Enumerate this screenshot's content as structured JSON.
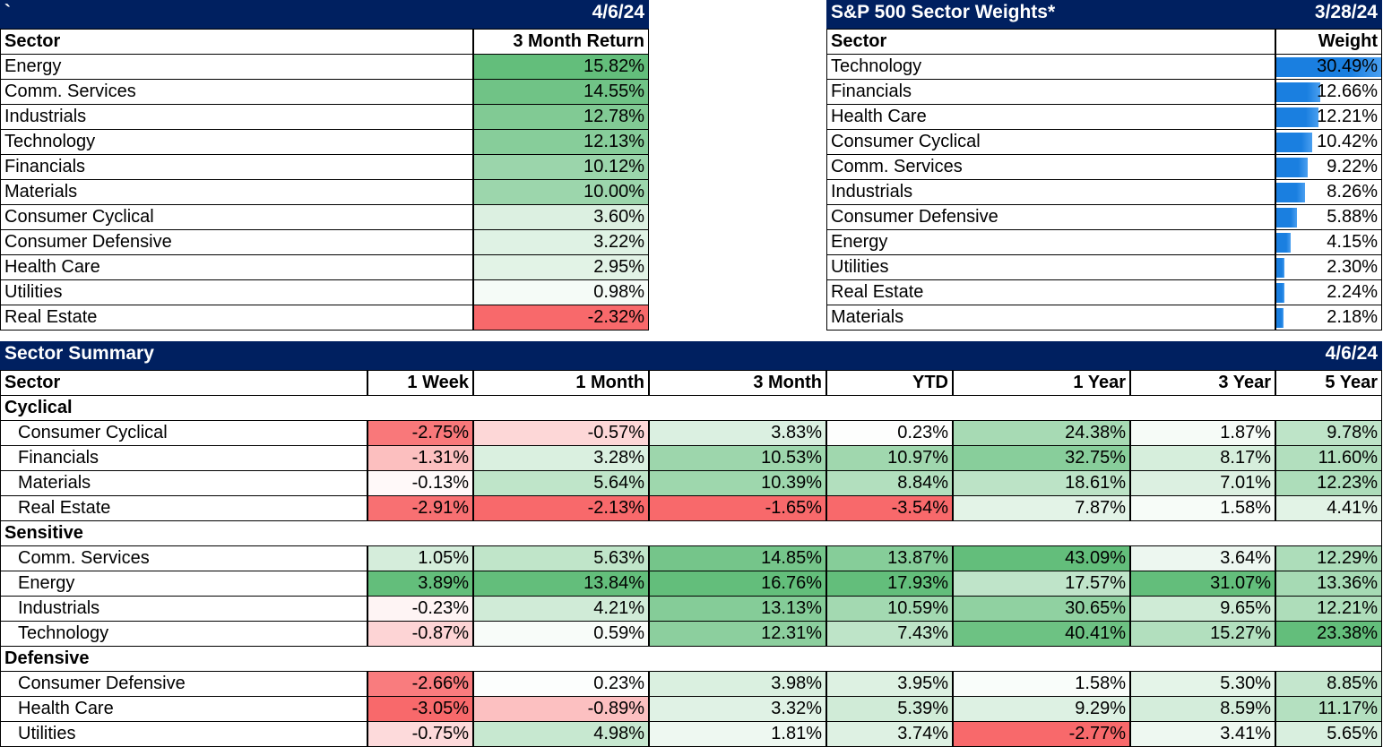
{
  "returns_table": {
    "title": "`",
    "date": "4/6/24",
    "columns": [
      "Sector",
      "3 Month Return"
    ],
    "rows": [
      [
        "Energy",
        "15.82%"
      ],
      [
        "Comm. Services",
        "14.55%"
      ],
      [
        "Industrials",
        "12.78%"
      ],
      [
        "Technology",
        "12.13%"
      ],
      [
        "Financials",
        "10.12%"
      ],
      [
        "Materials",
        "10.00%"
      ],
      [
        "Consumer Cyclical",
        "3.60%"
      ],
      [
        "Consumer Defensive",
        "3.22%"
      ],
      [
        "Health Care",
        "2.95%"
      ],
      [
        "Utilities",
        "0.98%"
      ],
      [
        "Real Estate",
        "-2.32%"
      ]
    ]
  },
  "weights_table": {
    "title": "S&P 500 Sector Weights*",
    "date": "3/28/24",
    "columns": [
      "Sector",
      "Weight"
    ],
    "rows": [
      [
        "Technology",
        "30.49%"
      ],
      [
        "Financials",
        "12.66%"
      ],
      [
        "Health Care",
        "12.21%"
      ],
      [
        "Consumer Cyclical",
        "10.42%"
      ],
      [
        "Comm. Services",
        "9.22%"
      ],
      [
        "Industrials",
        "8.26%"
      ],
      [
        "Consumer Defensive",
        "5.88%"
      ],
      [
        "Energy",
        "4.15%"
      ],
      [
        "Utilities",
        "2.30%"
      ],
      [
        "Real Estate",
        "2.24%"
      ],
      [
        "Materials",
        "2.18%"
      ]
    ]
  },
  "summary_table": {
    "title": "Sector Summary",
    "date": "4/6/24",
    "columns": [
      "Sector",
      "1 Week",
      "1 Month",
      "3 Month",
      "YTD",
      "1 Year",
      "3 Year",
      "5 Year"
    ],
    "groups": [
      {
        "name": "Cyclical",
        "rows": [
          [
            "Consumer Cyclical",
            "-2.75%",
            "-0.57%",
            "3.83%",
            "0.23%",
            "24.38%",
            "1.87%",
            "9.78%"
          ],
          [
            "Financials",
            "-1.31%",
            "3.28%",
            "10.53%",
            "10.97%",
            "32.75%",
            "8.17%",
            "11.60%"
          ],
          [
            "Materials",
            "-0.13%",
            "5.64%",
            "10.39%",
            "8.84%",
            "18.61%",
            "7.01%",
            "12.23%"
          ],
          [
            "Real Estate",
            "-2.91%",
            "-2.13%",
            "-1.65%",
            "-3.54%",
            "7.87%",
            "1.58%",
            "4.41%"
          ]
        ]
      },
      {
        "name": "Sensitive",
        "rows": [
          [
            "Comm. Services",
            "1.05%",
            "5.63%",
            "14.85%",
            "13.87%",
            "43.09%",
            "3.64%",
            "12.29%"
          ],
          [
            "Energy",
            "3.89%",
            "13.84%",
            "16.76%",
            "17.93%",
            "17.57%",
            "31.07%",
            "13.36%"
          ],
          [
            "Industrials",
            "-0.23%",
            "4.21%",
            "13.13%",
            "10.59%",
            "30.65%",
            "9.65%",
            "12.21%"
          ],
          [
            "Technology",
            "-0.87%",
            "0.59%",
            "12.31%",
            "7.43%",
            "40.41%",
            "15.27%",
            "23.38%"
          ]
        ]
      },
      {
        "name": "Defensive",
        "rows": [
          [
            "Consumer Defensive",
            "-2.66%",
            "0.23%",
            "3.98%",
            "3.95%",
            "1.58%",
            "5.30%",
            "8.85%"
          ],
          [
            "Health Care",
            "-3.05%",
            "-0.89%",
            "3.32%",
            "5.39%",
            "9.29%",
            "8.59%",
            "11.17%"
          ],
          [
            "Utilities",
            "-0.75%",
            "4.98%",
            "1.81%",
            "3.74%",
            "-2.77%",
            "3.41%",
            "5.65%"
          ]
        ]
      }
    ]
  }
}
